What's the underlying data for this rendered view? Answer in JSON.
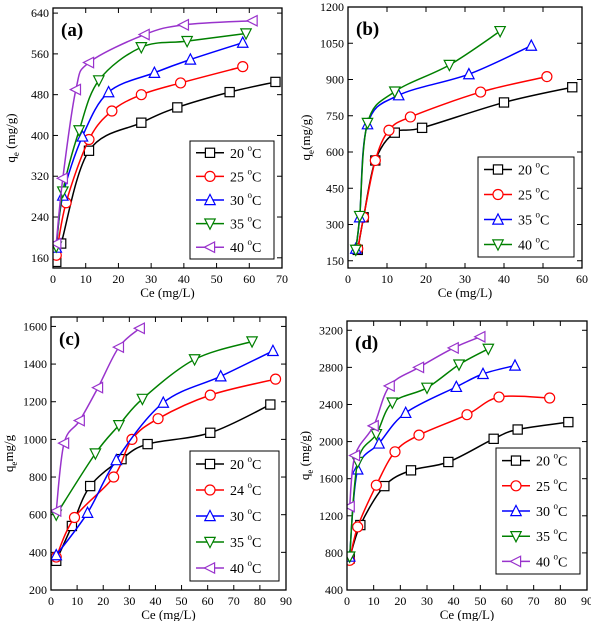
{
  "chart_data": [
    {
      "type": "line",
      "panel_label": "(a)",
      "xlabel": "Ce (mg/L)",
      "ylabel_main": "q",
      "ylabel_sub": "e",
      "ylabel_tail": " (mg/g)",
      "xlim": [
        0,
        70
      ],
      "ylim": [
        140,
        650
      ],
      "xticks": [
        0,
        10,
        20,
        30,
        40,
        50,
        60,
        70
      ],
      "yticks": [
        160,
        240,
        320,
        400,
        480,
        560,
        640
      ],
      "series": [
        {
          "name": "20",
          "color": "#000000",
          "marker": "square",
          "x": [
            1,
            2.5,
            11,
            27,
            38,
            54,
            68
          ],
          "y": [
            152,
            188,
            370,
            425,
            455,
            485,
            505
          ]
        },
        {
          "name": "25",
          "color": "#ff0000",
          "marker": "circle",
          "x": [
            1,
            4,
            11,
            18,
            27,
            39,
            58
          ],
          "y": [
            165,
            268,
            392,
            448,
            480,
            503,
            535
          ]
        },
        {
          "name": "30",
          "color": "#0000ff",
          "marker": "triangle-up",
          "x": [
            1,
            3,
            9,
            17,
            31,
            42,
            58
          ],
          "y": [
            180,
            282,
            398,
            485,
            523,
            549,
            582
          ]
        },
        {
          "name": "35",
          "color": "#008000",
          "marker": "triangle-down",
          "x": [
            1,
            3,
            8,
            14,
            27,
            41,
            59
          ],
          "y": [
            182,
            290,
            410,
            508,
            573,
            585,
            600
          ]
        },
        {
          "name": "40",
          "color": "#9933cc",
          "marker": "triangle-left",
          "x": [
            1,
            3,
            7,
            11,
            28,
            40,
            61
          ],
          "y": [
            188,
            316,
            490,
            543,
            598,
            617,
            625
          ]
        }
      ],
      "legend_labels": [
        "20 ",
        "25 ",
        "30 ",
        "35 ",
        "40 "
      ],
      "legend_unit": "C",
      "legend_sup": "o",
      "legend_position": "bottom-right",
      "grid": false
    },
    {
      "type": "line",
      "panel_label": "(b)",
      "xlabel": "Ce (mg/L)",
      "ylabel_main": "q",
      "ylabel_sub": "e",
      "ylabel_tail": "(mg/g)",
      "xlim": [
        0,
        60
      ],
      "ylim": [
        120,
        1200
      ],
      "xticks": [
        0,
        10,
        20,
        30,
        40,
        50,
        60
      ],
      "yticks": [
        150,
        300,
        450,
        600,
        750,
        900,
        1050,
        1200
      ],
      "series": [
        {
          "name": "20",
          "color": "#000000",
          "marker": "square",
          "x": [
            2.5,
            4,
            7,
            12,
            19,
            40,
            57.5
          ],
          "y": [
            195,
            330,
            565,
            680,
            700,
            805,
            868
          ]
        },
        {
          "name": "25",
          "color": "#ff0000",
          "marker": "circle",
          "x": [
            2.5,
            4,
            7,
            10.5,
            16,
            34,
            51
          ],
          "y": [
            200,
            330,
            565,
            690,
            745,
            848,
            912
          ]
        },
        {
          "name": "35",
          "color": "#0000ff",
          "marker": "triangle-up",
          "x": [
            2,
            3,
            5,
            13,
            31,
            47
          ],
          "y": [
            200,
            330,
            715,
            835,
            922,
            1040
          ]
        },
        {
          "name": "40",
          "color": "#008000",
          "marker": "triangle-down",
          "x": [
            2,
            3,
            5,
            12,
            26,
            39
          ],
          "y": [
            195,
            335,
            720,
            850,
            960,
            1100
          ]
        }
      ],
      "legend_labels": [
        "20 ",
        "25 ",
        "35 ",
        "40 "
      ],
      "legend_unit": "C",
      "legend_sup": "o",
      "legend_position": "bottom-right",
      "grid": false
    },
    {
      "type": "line",
      "panel_label": "(c)",
      "xlabel": "Ce (mg/L)",
      "ylabel_main": "q",
      "ylabel_sub": "e",
      "ylabel_tail": "mg/g",
      "xlim": [
        0,
        90
      ],
      "ylim": [
        200,
        1650
      ],
      "xticks": [
        0,
        10,
        20,
        30,
        40,
        50,
        60,
        70,
        80,
        90
      ],
      "yticks": [
        200,
        400,
        600,
        800,
        1000,
        1200,
        1400,
        1600
      ],
      "series": [
        {
          "name": "20",
          "color": "#000000",
          "marker": "square",
          "x": [
            2,
            8,
            15,
            27,
            37,
            61,
            84
          ],
          "y": [
            355,
            540,
            752,
            895,
            975,
            1035,
            1185
          ]
        },
        {
          "name": "24",
          "color": "#ff0000",
          "marker": "circle",
          "x": [
            2,
            9,
            24,
            31,
            41,
            61,
            86
          ],
          "y": [
            375,
            585,
            800,
            1000,
            1110,
            1235,
            1320
          ]
        },
        {
          "name": "30",
          "color": "#0000ff",
          "marker": "triangle-up",
          "x": [
            2,
            14,
            25,
            43,
            65,
            85
          ],
          "y": [
            385,
            610,
            890,
            1195,
            1335,
            1470
          ]
        },
        {
          "name": "35",
          "color": "#008000",
          "marker": "triangle-down",
          "x": [
            2,
            17,
            26,
            35,
            55,
            77
          ],
          "y": [
            600,
            925,
            1075,
            1215,
            1425,
            1520
          ]
        },
        {
          "name": "40",
          "color": "#9933cc",
          "marker": "triangle-left",
          "x": [
            2,
            5,
            11,
            18,
            26,
            34
          ],
          "y": [
            620,
            980,
            1100,
            1275,
            1490,
            1590
          ]
        }
      ],
      "legend_labels": [
        "20 ",
        "24 ",
        "30 ",
        "35 ",
        "40 "
      ],
      "legend_unit": "C",
      "legend_sup": "o",
      "legend_position": "bottom-right",
      "grid": false
    },
    {
      "type": "line",
      "panel_label": "(d)",
      "xlabel": "Ce (mg/L)",
      "ylabel_main": "q",
      "ylabel_sub": "e",
      "ylabel_tail": " (mg/g)",
      "xlim": [
        0,
        90
      ],
      "ylim": [
        400,
        3300
      ],
      "xticks": [
        0,
        10,
        20,
        30,
        40,
        50,
        60,
        70,
        80,
        90
      ],
      "yticks": [
        400,
        800,
        1200,
        1600,
        2000,
        2400,
        2800,
        3200
      ],
      "series": [
        {
          "name": "20",
          "color": "#000000",
          "marker": "square",
          "x": [
            1,
            5,
            14,
            24,
            38,
            55,
            64,
            83
          ],
          "y": [
            740,
            1100,
            1520,
            1690,
            1780,
            2030,
            2130,
            2210
          ]
        },
        {
          "name": "25",
          "color": "#ff0000",
          "marker": "circle",
          "x": [
            1,
            4,
            11,
            18,
            27,
            45,
            57,
            76
          ],
          "y": [
            720,
            1080,
            1530,
            1890,
            2070,
            2290,
            2480,
            2470
          ]
        },
        {
          "name": "30",
          "color": "#0000ff",
          "marker": "triangle-up",
          "x": [
            1,
            4,
            12,
            22,
            41,
            51,
            63
          ],
          "y": [
            760,
            1700,
            1980,
            2310,
            2590,
            2730,
            2820
          ]
        },
        {
          "name": "35",
          "color": "#008000",
          "marker": "triangle-down",
          "x": [
            1,
            4,
            11,
            17,
            30,
            42,
            53
          ],
          "y": [
            760,
            1780,
            2080,
            2420,
            2580,
            2830,
            3000
          ]
        },
        {
          "name": "40",
          "color": "#9933cc",
          "marker": "triangle-left",
          "x": [
            1,
            3,
            10,
            16,
            27,
            40,
            50
          ],
          "y": [
            1300,
            1850,
            2170,
            2600,
            2800,
            3010,
            3130
          ]
        }
      ],
      "legend_labels": [
        "20 ",
        "25 ",
        "30 ",
        "35 ",
        "40 "
      ],
      "legend_unit": "C",
      "legend_sup": "o",
      "legend_position": "bottom-right",
      "grid": false
    }
  ]
}
